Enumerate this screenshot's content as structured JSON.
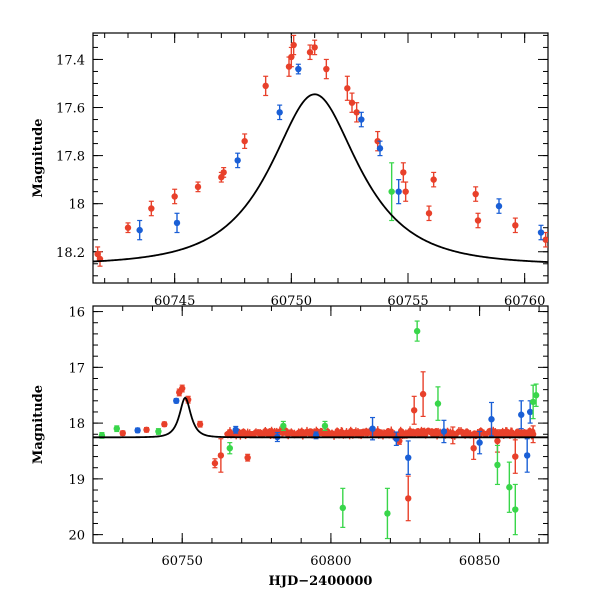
{
  "chart_data": [
    {
      "type": "scatter",
      "panel": "top",
      "xlabel": "",
      "ylabel": "Magnitude",
      "xlim": [
        60741.5,
        60761.0
      ],
      "ylim": [
        18.33,
        17.29
      ],
      "y_inverted": true,
      "x_ticks": [
        60745,
        60750,
        60755,
        60760
      ],
      "x_tick_labels": [
        "60745",
        "60750",
        "60755",
        "60760"
      ],
      "y_ticks": [
        17.4,
        17.6,
        17.8,
        18.0,
        18.2
      ],
      "y_tick_labels": [
        "17.4",
        "17.6",
        "17.8",
        "18",
        "18.2"
      ],
      "grid": false,
      "series": [
        {
          "color": "#e8402a",
          "points": [
            {
              "x": 60741.7,
              "y": 18.21,
              "err": 0.03
            },
            {
              "x": 60741.8,
              "y": 18.23,
              "err": 0.03
            },
            {
              "x": 60743.0,
              "y": 18.1,
              "err": 0.02
            },
            {
              "x": 60744.0,
              "y": 18.02,
              "err": 0.03
            },
            {
              "x": 60745.0,
              "y": 17.97,
              "err": 0.03
            },
            {
              "x": 60746.0,
              "y": 17.93,
              "err": 0.02
            },
            {
              "x": 60747.0,
              "y": 17.89,
              "err": 0.02
            },
            {
              "x": 60747.1,
              "y": 17.87,
              "err": 0.02
            },
            {
              "x": 60748.0,
              "y": 17.74,
              "err": 0.03
            },
            {
              "x": 60748.9,
              "y": 17.51,
              "err": 0.04
            },
            {
              "x": 60749.9,
              "y": 17.43,
              "err": 0.04
            },
            {
              "x": 60750.0,
              "y": 17.39,
              "err": 0.04
            },
            {
              "x": 60750.1,
              "y": 17.34,
              "err": 0.04
            },
            {
              "x": 60750.8,
              "y": 17.37,
              "err": 0.03
            },
            {
              "x": 60751.0,
              "y": 17.35,
              "err": 0.03
            },
            {
              "x": 60751.5,
              "y": 17.44,
              "err": 0.04
            },
            {
              "x": 60752.4,
              "y": 17.52,
              "err": 0.05
            },
            {
              "x": 60752.6,
              "y": 17.58,
              "err": 0.04
            },
            {
              "x": 60752.8,
              "y": 17.62,
              "err": 0.04
            },
            {
              "x": 60753.7,
              "y": 17.74,
              "err": 0.04
            },
            {
              "x": 60754.8,
              "y": 17.87,
              "err": 0.04
            },
            {
              "x": 60754.9,
              "y": 17.95,
              "err": 0.04
            },
            {
              "x": 60755.9,
              "y": 18.04,
              "err": 0.03
            },
            {
              "x": 60756.1,
              "y": 17.9,
              "err": 0.03
            },
            {
              "x": 60757.9,
              "y": 17.96,
              "err": 0.03
            },
            {
              "x": 60758.0,
              "y": 18.07,
              "err": 0.03
            },
            {
              "x": 60759.6,
              "y": 18.09,
              "err": 0.03
            },
            {
              "x": 60760.9,
              "y": 18.15,
              "err": 0.03
            }
          ]
        },
        {
          "color": "#1a5fd6",
          "points": [
            {
              "x": 60743.5,
              "y": 18.11,
              "err": 0.04
            },
            {
              "x": 60745.1,
              "y": 18.08,
              "err": 0.04
            },
            {
              "x": 60747.7,
              "y": 17.82,
              "err": 0.03
            },
            {
              "x": 60749.5,
              "y": 17.62,
              "err": 0.03
            },
            {
              "x": 60750.3,
              "y": 17.44,
              "err": 0.02
            },
            {
              "x": 60753.0,
              "y": 17.65,
              "err": 0.03
            },
            {
              "x": 60753.8,
              "y": 17.77,
              "err": 0.03
            },
            {
              "x": 60754.6,
              "y": 17.95,
              "err": 0.05
            },
            {
              "x": 60758.9,
              "y": 18.01,
              "err": 0.03
            },
            {
              "x": 60760.7,
              "y": 18.12,
              "err": 0.03
            }
          ]
        },
        {
          "color": "#39d64a",
          "points": [
            {
              "x": 60754.3,
              "y": 17.95,
              "err": 0.12
            }
          ]
        }
      ],
      "model_curve": {
        "type": "single-lens",
        "t0": 60751.0,
        "peak_mag": 17.545,
        "baseline_mag": 18.255,
        "tE": 3.0,
        "color": "#000000"
      }
    },
    {
      "type": "scatter",
      "panel": "bottom",
      "xlabel": "HJD−2400000",
      "ylabel": "Magnitude",
      "xlim": [
        60720,
        60873
      ],
      "ylim": [
        20.15,
        15.9
      ],
      "y_inverted": true,
      "x_ticks": [
        60750,
        60800,
        60850
      ],
      "x_tick_labels": [
        "60750",
        "60800",
        "60850"
      ],
      "y_ticks": [
        16,
        17,
        18,
        19,
        20
      ],
      "y_tick_labels": [
        "16",
        "17",
        "18",
        "19",
        "20"
      ],
      "grid": false,
      "series": [
        {
          "color": "#e8402a",
          "points": [
            {
              "x": 60730,
              "y": 18.18,
              "err": 0.04
            },
            {
              "x": 60738,
              "y": 18.12,
              "err": 0.04
            },
            {
              "x": 60744,
              "y": 18.02,
              "err": 0.04
            },
            {
              "x": 60749,
              "y": 17.45,
              "err": 0.06
            },
            {
              "x": 60750,
              "y": 17.38,
              "err": 0.06
            },
            {
              "x": 60752,
              "y": 17.58,
              "err": 0.06
            },
            {
              "x": 60756,
              "y": 18.02,
              "err": 0.05
            },
            {
              "x": 60761,
              "y": 18.72,
              "err": 0.08
            },
            {
              "x": 60763,
              "y": 18.58,
              "err": 0.3
            },
            {
              "x": 60772,
              "y": 18.62,
              "err": 0.06
            },
            {
              "x": 60790,
              "y": 18.19,
              "err": 0.06
            },
            {
              "x": 60810,
              "y": 18.18,
              "err": 0.06
            },
            {
              "x": 60823,
              "y": 18.32,
              "err": 0.06
            },
            {
              "x": 60826,
              "y": 19.35,
              "err": 0.4
            },
            {
              "x": 60828,
              "y": 17.77,
              "err": 0.25
            },
            {
              "x": 60831,
              "y": 17.48,
              "err": 0.4
            },
            {
              "x": 60841,
              "y": 18.22,
              "err": 0.15
            },
            {
              "x": 60848,
              "y": 18.45,
              "err": 0.2
            },
            {
              "x": 60856,
              "y": 18.32,
              "err": 0.2
            },
            {
              "x": 60862,
              "y": 18.6,
              "err": 0.3
            },
            {
              "x": 60868,
              "y": 18.2,
              "err": 0.15
            }
          ],
          "dense_band": {
            "x_start": 60765,
            "x_end": 60868,
            "center": 18.18,
            "spread": 0.05
          }
        },
        {
          "color": "#1a5fd6",
          "points": [
            {
              "x": 60735,
              "y": 18.13,
              "err": 0.04
            },
            {
              "x": 60748,
              "y": 17.6,
              "err": 0.04
            },
            {
              "x": 60768,
              "y": 18.12,
              "err": 0.06
            },
            {
              "x": 60782,
              "y": 18.25,
              "err": 0.08
            },
            {
              "x": 60795,
              "y": 18.22,
              "err": 0.06
            },
            {
              "x": 60814,
              "y": 18.1,
              "err": 0.2
            },
            {
              "x": 60822,
              "y": 18.28,
              "err": 0.12
            },
            {
              "x": 60826,
              "y": 18.62,
              "err": 0.3
            },
            {
              "x": 60838,
              "y": 18.15,
              "err": 0.2
            },
            {
              "x": 60850,
              "y": 18.35,
              "err": 0.2
            },
            {
              "x": 60854,
              "y": 17.93,
              "err": 0.3
            },
            {
              "x": 60864,
              "y": 17.85,
              "err": 0.25
            },
            {
              "x": 60866,
              "y": 18.58,
              "err": 0.3
            },
            {
              "x": 60867,
              "y": 17.8,
              "err": 0.2
            }
          ]
        },
        {
          "color": "#39d64a",
          "points": [
            {
              "x": 60723,
              "y": 18.22,
              "err": 0.05
            },
            {
              "x": 60728,
              "y": 18.1,
              "err": 0.05
            },
            {
              "x": 60742,
              "y": 18.15,
              "err": 0.05
            },
            {
              "x": 60766,
              "y": 18.45,
              "err": 0.1
            },
            {
              "x": 60784,
              "y": 18.05,
              "err": 0.08
            },
            {
              "x": 60798,
              "y": 18.05,
              "err": 0.08
            },
            {
              "x": 60804,
              "y": 19.52,
              "err": 0.35
            },
            {
              "x": 60819,
              "y": 19.62,
              "err": 0.45
            },
            {
              "x": 60829,
              "y": 16.35,
              "err": 0.18
            },
            {
              "x": 60836,
              "y": 17.65,
              "err": 0.3
            },
            {
              "x": 60856,
              "y": 18.75,
              "err": 0.35
            },
            {
              "x": 60860,
              "y": 19.15,
              "err": 0.45
            },
            {
              "x": 60862,
              "y": 19.55,
              "err": 0.45
            },
            {
              "x": 60868,
              "y": 17.62,
              "err": 0.3
            },
            {
              "x": 60869,
              "y": 17.5,
              "err": 0.2
            }
          ]
        }
      ],
      "model_curve": {
        "type": "single-lens",
        "t0": 60751.0,
        "peak_mag": 17.545,
        "baseline_mag": 18.255,
        "tE": 3.0,
        "color": "#000000"
      }
    }
  ]
}
